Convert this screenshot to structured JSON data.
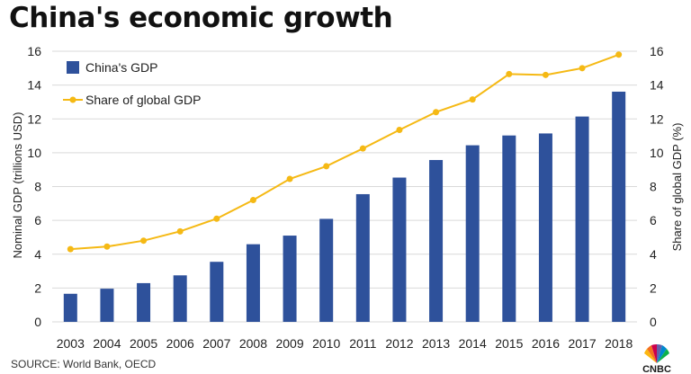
{
  "title": "China's economic growth",
  "source": "SOURCE: World Bank, OECD",
  "logo": "CNBC",
  "colors": {
    "bar": "#2E519B",
    "line": "#F5B914",
    "grid": "#D9D9D9"
  },
  "chart_data": {
    "type": "bar",
    "title": "China's economic growth",
    "categories": [
      "2003",
      "2004",
      "2005",
      "2006",
      "2007",
      "2008",
      "2009",
      "2010",
      "2011",
      "2012",
      "2013",
      "2014",
      "2015",
      "2016",
      "2017",
      "2018"
    ],
    "series": [
      {
        "name": "China's GDP",
        "type": "bar",
        "axis": "left",
        "values": [
          1.66,
          1.96,
          2.29,
          2.75,
          3.55,
          4.59,
          5.1,
          6.09,
          7.55,
          8.53,
          9.57,
          10.44,
          11.02,
          11.14,
          12.14,
          13.61
        ]
      },
      {
        "name": "Share of global GDP",
        "type": "line",
        "axis": "right",
        "values": [
          4.3,
          4.45,
          4.8,
          5.35,
          6.1,
          7.2,
          8.45,
          9.2,
          10.25,
          11.35,
          12.4,
          13.15,
          14.65,
          14.6,
          15.0,
          15.8
        ]
      }
    ],
    "ylabel": "Nominal GDP (trillions USD)",
    "y2label": "Share of global GDP (%)",
    "ylim": [
      0,
      16
    ],
    "y2lim": [
      0,
      16
    ],
    "yticks": [
      "0",
      "2",
      "4",
      "6",
      "8",
      "10",
      "12",
      "14",
      "16"
    ],
    "y2ticks": [
      "0",
      "2",
      "4",
      "6",
      "8",
      "10",
      "12",
      "14",
      "16"
    ],
    "grid": true,
    "legend_position": "top-left"
  }
}
